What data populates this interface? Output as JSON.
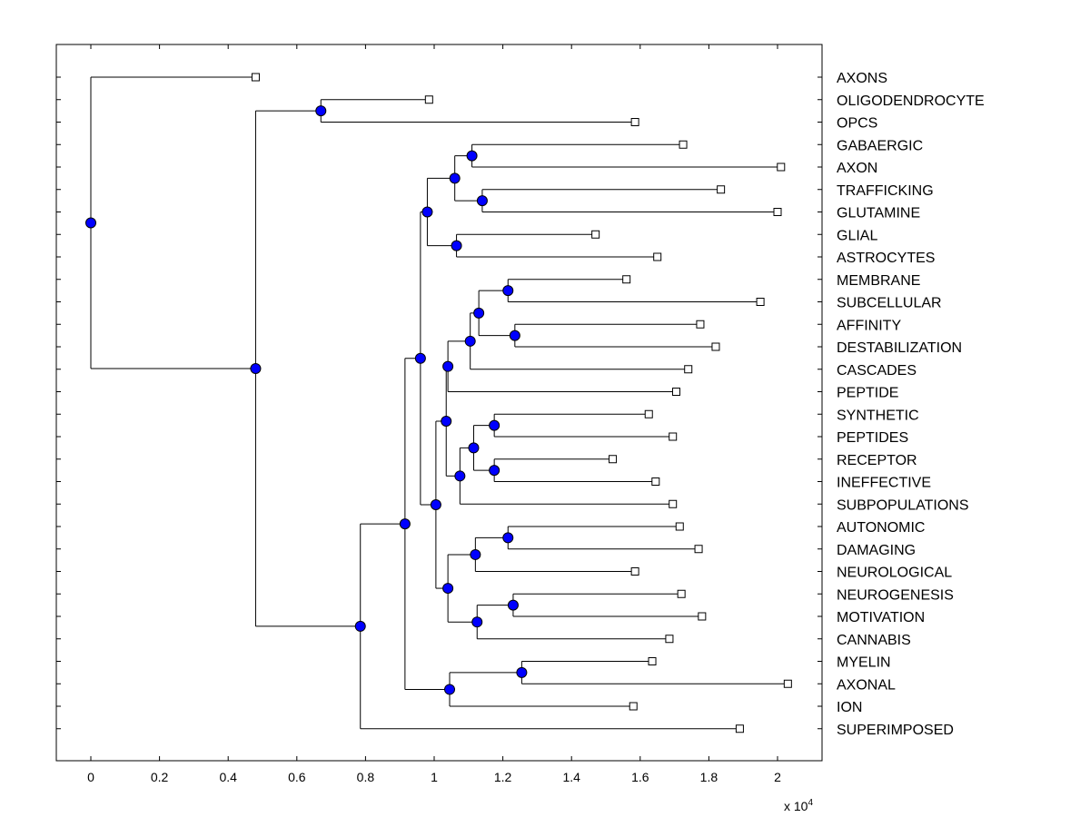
{
  "chart_data": {
    "type": "dendrogram",
    "orientation": "horizontal",
    "x_multiplier_label": {
      "base": "x 10",
      "exponent": "4"
    },
    "xlim": [
      -0.1,
      2.14
    ],
    "xticks": [
      {
        "value": 0,
        "label": "0"
      },
      {
        "value": 0.2,
        "label": "0.2"
      },
      {
        "value": 0.4,
        "label": "0.4"
      },
      {
        "value": 0.6,
        "label": "0.6"
      },
      {
        "value": 0.8,
        "label": "0.8"
      },
      {
        "value": 1.0,
        "label": "1"
      },
      {
        "value": 1.2,
        "label": "1.2"
      },
      {
        "value": 1.4,
        "label": "1.4"
      },
      {
        "value": 1.6,
        "label": "1.6"
      },
      {
        "value": 1.8,
        "label": "1.8"
      },
      {
        "value": 2.0,
        "label": "2"
      }
    ],
    "leaves": [
      {
        "id": "L1",
        "label": "AXONS",
        "value": 0.48
      },
      {
        "id": "L2",
        "label": "OLIGODENDROCYTE",
        "value": 0.985
      },
      {
        "id": "L3",
        "label": "OPCS",
        "value": 1.585
      },
      {
        "id": "L4",
        "label": "GABAERGIC",
        "value": 1.725
      },
      {
        "id": "L5",
        "label": "AXON",
        "value": 2.01
      },
      {
        "id": "L6",
        "label": "TRAFFICKING",
        "value": 1.835
      },
      {
        "id": "L7",
        "label": "GLUTAMINE",
        "value": 2.0
      },
      {
        "id": "L8",
        "label": "GLIAL",
        "value": 1.47
      },
      {
        "id": "L9",
        "label": "ASTROCYTES",
        "value": 1.65
      },
      {
        "id": "L10",
        "label": "MEMBRANE",
        "value": 1.56
      },
      {
        "id": "L11",
        "label": "SUBCELLULAR",
        "value": 1.95
      },
      {
        "id": "L12",
        "label": "AFFINITY",
        "value": 1.775
      },
      {
        "id": "L13",
        "label": "DESTABILIZATION",
        "value": 1.82
      },
      {
        "id": "L14",
        "label": "CASCADES",
        "value": 1.74
      },
      {
        "id": "L15",
        "label": "PEPTIDE",
        "value": 1.705
      },
      {
        "id": "L16",
        "label": "SYNTHETIC",
        "value": 1.625
      },
      {
        "id": "L17",
        "label": "PEPTIDES",
        "value": 1.695
      },
      {
        "id": "L18",
        "label": "RECEPTOR",
        "value": 1.52
      },
      {
        "id": "L19",
        "label": "INEFFECTIVE",
        "value": 1.645
      },
      {
        "id": "L20",
        "label": "SUBPOPULATIONS",
        "value": 1.695
      },
      {
        "id": "L21",
        "label": "AUTONOMIC",
        "value": 1.715
      },
      {
        "id": "L22",
        "label": "DAMAGING",
        "value": 1.77
      },
      {
        "id": "L23",
        "label": "NEUROLOGICAL",
        "value": 1.585
      },
      {
        "id": "L24",
        "label": "NEUROGENESIS",
        "value": 1.72
      },
      {
        "id": "L25",
        "label": "MOTIVATION",
        "value": 1.78
      },
      {
        "id": "L26",
        "label": "CANNABIS",
        "value": 1.685
      },
      {
        "id": "L27",
        "label": "MYELIN",
        "value": 1.635
      },
      {
        "id": "L28",
        "label": "AXONAL",
        "value": 2.03
      },
      {
        "id": "L29",
        "label": "ION",
        "value": 1.58
      },
      {
        "id": "L30",
        "label": "SUPERIMPOSED",
        "value": 1.89
      }
    ],
    "nodes": [
      {
        "id": "A",
        "value": 1.11,
        "children": [
          "L4",
          "L5"
        ]
      },
      {
        "id": "B",
        "value": 1.14,
        "children": [
          "L6",
          "L7"
        ]
      },
      {
        "id": "C",
        "value": 1.06,
        "children": [
          "A",
          "B"
        ]
      },
      {
        "id": "D",
        "value": 1.065,
        "children": [
          "L8",
          "L9"
        ]
      },
      {
        "id": "E",
        "value": 0.98,
        "children": [
          "C",
          "D"
        ]
      },
      {
        "id": "F",
        "value": 1.215,
        "children": [
          "L10",
          "L11"
        ]
      },
      {
        "id": "G",
        "value": 1.235,
        "children": [
          "L12",
          "L13"
        ]
      },
      {
        "id": "H",
        "value": 1.13,
        "children": [
          "F",
          "G"
        ]
      },
      {
        "id": "I",
        "value": 1.105,
        "children": [
          "H",
          "L14"
        ]
      },
      {
        "id": "J",
        "value": 1.04,
        "children": [
          "I",
          "L15"
        ]
      },
      {
        "id": "K",
        "value": 1.175,
        "children": [
          "L16",
          "L17"
        ]
      },
      {
        "id": "M",
        "value": 1.175,
        "children": [
          "L18",
          "L19"
        ]
      },
      {
        "id": "N",
        "value": 1.115,
        "children": [
          "K",
          "M"
        ]
      },
      {
        "id": "O",
        "value": 1.075,
        "children": [
          "N",
          "L20"
        ]
      },
      {
        "id": "P",
        "value": 1.035,
        "children": [
          "J",
          "O"
        ]
      },
      {
        "id": "Q",
        "value": 1.215,
        "children": [
          "L21",
          "L22"
        ]
      },
      {
        "id": "R",
        "value": 1.12,
        "children": [
          "Q",
          "L23"
        ]
      },
      {
        "id": "S",
        "value": 1.23,
        "children": [
          "L24",
          "L25"
        ]
      },
      {
        "id": "T",
        "value": 1.125,
        "children": [
          "S",
          "L26"
        ]
      },
      {
        "id": "U",
        "value": 1.04,
        "children": [
          "R",
          "T"
        ]
      },
      {
        "id": "V",
        "value": 1.005,
        "children": [
          "P",
          "U"
        ]
      },
      {
        "id": "W",
        "value": 0.96,
        "children": [
          "E",
          "V"
        ]
      },
      {
        "id": "X",
        "value": 1.255,
        "children": [
          "L27",
          "L28"
        ]
      },
      {
        "id": "Y",
        "value": 1.045,
        "children": [
          "X",
          "L29"
        ]
      },
      {
        "id": "Z",
        "value": 0.915,
        "children": [
          "W",
          "Y"
        ]
      },
      {
        "id": "AA",
        "value": 0.785,
        "children": [
          "Z",
          "L30"
        ]
      },
      {
        "id": "AB",
        "value": 0.67,
        "children": [
          "L2",
          "L3"
        ]
      },
      {
        "id": "AC",
        "value": 0.48,
        "children": [
          "AB",
          "AA"
        ]
      },
      {
        "id": "ROOT",
        "value": 0.0,
        "children": [
          "L1",
          "AC"
        ]
      }
    ],
    "colors": {
      "node_fill": "#0000ff",
      "node_stroke": "#000000",
      "line": "#000000",
      "leaf_fill": "#ffffff"
    }
  }
}
